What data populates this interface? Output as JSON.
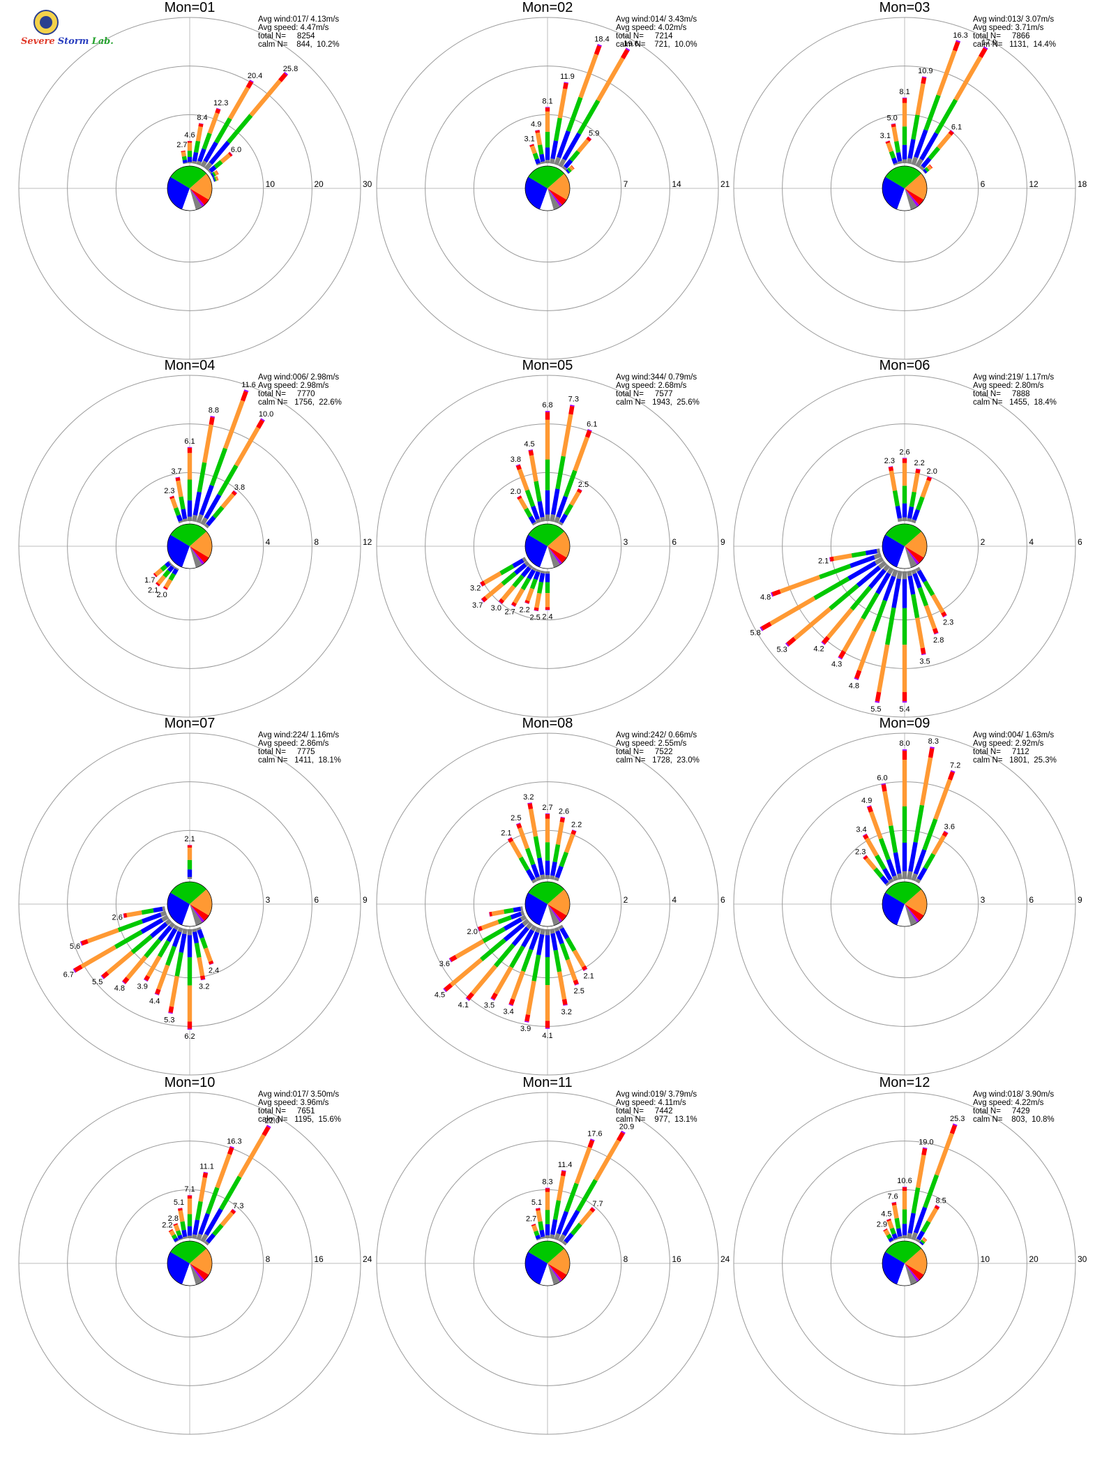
{
  "logo": {
    "text_1": "Severe",
    "text_2": "Storm",
    "text_3": "Lab."
  },
  "colors": {
    "calm_pie": [
      "#0000ff",
      "#00c800",
      "#ff9933",
      "#ff0000",
      "#a000ff",
      "#808080",
      "#ffffff"
    ],
    "speed_bins": [
      "#808080",
      "#0000ff",
      "#00c800",
      "#ff9933",
      "#ff0000",
      "#a000ff"
    ]
  },
  "chart_data": [
    {
      "type": "wind-rose",
      "title": "Mon=01",
      "rings": [
        "10",
        "20",
        "30"
      ],
      "rmax": 30,
      "info": [
        "Avg wind:017/ 4.13m/s",
        "Avg speed: 4.47m/s",
        "total N=     8254",
        "calm N=    844,  10.2%"
      ],
      "directions_deg": [
        350,
        0,
        10,
        20,
        30,
        40,
        50,
        60,
        70
      ],
      "pct": [
        2.7,
        4.6,
        8.4,
        12.3,
        20.4,
        25.8,
        6.0,
        1.5,
        1.0
      ],
      "labels": [
        "2.7",
        "4.6",
        "8.4",
        "12.3",
        "20.4",
        "25.8",
        "6.0",
        "",
        ""
      ]
    },
    {
      "type": "wind-rose",
      "title": "Mon=02",
      "rings": [
        "7",
        "14",
        "21"
      ],
      "rmax": 21,
      "info": [
        "Avg wind:014/ 3.43m/s",
        "Avg speed: 4.02m/s",
        "total N=     7214",
        "calm N=    721,  10.0%"
      ],
      "directions_deg": [
        340,
        350,
        0,
        10,
        20,
        30,
        40,
        50
      ],
      "pct": [
        3.1,
        4.9,
        8.1,
        11.9,
        18.4,
        19.6,
        5.9,
        1.2
      ],
      "labels": [
        "3.1",
        "4.9",
        "8.1",
        "11.9",
        "18.4",
        "19.6",
        "5.9",
        ""
      ]
    },
    {
      "type": "wind-rose",
      "title": "Mon=03",
      "rings": [
        "6",
        "12",
        "18"
      ],
      "rmax": 18,
      "info": [
        "Avg wind:013/ 3.07m/s",
        "Avg speed: 3.71m/s",
        "total N=     7866",
        "calm N=   1131,  14.4%"
      ],
      "directions_deg": [
        340,
        350,
        0,
        10,
        20,
        30,
        40,
        50
      ],
      "pct": [
        3.1,
        5.0,
        8.1,
        10.9,
        16.3,
        17.0,
        6.1,
        1.2
      ],
      "labels": [
        "3.1",
        "5.0",
        "8.1",
        "10.9",
        "16.3",
        "17.0",
        "6.1",
        ""
      ]
    },
    {
      "type": "wind-rose",
      "title": "Mon=04",
      "rings": [
        "4",
        "8",
        "12"
      ],
      "rmax": 12,
      "info": [
        "Avg wind:006/ 2.98m/s",
        "Avg speed: 2.98m/s",
        "total N=     7770",
        "calm N=   1756,  22.6%"
      ],
      "directions_deg": [
        340,
        350,
        0,
        10,
        20,
        30,
        40,
        210,
        220,
        230
      ],
      "pct": [
        2.3,
        3.7,
        6.1,
        8.8,
        11.6,
        10.0,
        3.8,
        2.0,
        2.1,
        1.7
      ],
      "labels": [
        "2.3",
        "3.7",
        "6.1",
        "8.8",
        "11.6",
        "10.0",
        "3.8",
        "2.0",
        "2.1",
        "1.7"
      ]
    },
    {
      "type": "wind-rose",
      "title": "Mon=05",
      "rings": [
        "3",
        "6",
        "9"
      ],
      "rmax": 9,
      "info": [
        "Avg wind:344/ 0.79m/s",
        "Avg speed: 2.68m/s",
        "total N=     7577",
        "calm N=   1943,  25.6%"
      ],
      "directions_deg": [
        330,
        340,
        350,
        0,
        10,
        20,
        30,
        180,
        190,
        200,
        210,
        220,
        230,
        240
      ],
      "pct": [
        2.0,
        3.8,
        4.5,
        6.8,
        7.3,
        6.1,
        2.5,
        2.4,
        2.5,
        2.2,
        2.7,
        3.0,
        3.7,
        3.2
      ],
      "labels": [
        "2.0",
        "3.8",
        "4.5",
        "6.8",
        "7.3",
        "6.1",
        "2.5",
        "2.4",
        "2.5",
        "2.2",
        "2.7",
        "3.0",
        "3.7",
        "3.2"
      ]
    },
    {
      "type": "wind-rose",
      "title": "Mon=06",
      "rings": [
        "2",
        "4",
        "6"
      ],
      "rmax": 6,
      "info": [
        "Avg wind:219/ 1.17m/s",
        "Avg speed: 2.80m/s",
        "total N=     7888",
        "calm N=   1455,  18.4%"
      ],
      "directions_deg": [
        350,
        0,
        10,
        20,
        150,
        160,
        170,
        180,
        190,
        200,
        210,
        220,
        230,
        240,
        250,
        260
      ],
      "pct": [
        2.3,
        2.6,
        2.2,
        2.0,
        2.3,
        2.8,
        3.5,
        5.4,
        5.5,
        4.8,
        4.3,
        4.2,
        5.3,
        5.8,
        4.8,
        2.1
      ],
      "labels": [
        "2.3",
        "2.6",
        "2.2",
        "2.0",
        "2.3",
        "2.8",
        "3.5",
        "5.4",
        "5.5",
        "4.8",
        "4.3",
        "4.2",
        "5.3",
        "5.8",
        "4.8",
        "2.1"
      ]
    },
    {
      "type": "wind-rose",
      "title": "Mon=07",
      "rings": [
        "3",
        "6",
        "9"
      ],
      "rmax": 9,
      "info": [
        "Avg wind:224/ 1.16m/s",
        "Avg speed: 2.86m/s",
        "total N=     7775",
        "calm N=   1411,  18.1%"
      ],
      "directions_deg": [
        0,
        160,
        170,
        180,
        190,
        200,
        210,
        220,
        230,
        240,
        250,
        260
      ],
      "pct": [
        2.1,
        2.4,
        3.2,
        6.2,
        5.3,
        4.4,
        3.9,
        4.8,
        5.5,
        6.7,
        5.6,
        2.6
      ],
      "labels": [
        "2.1",
        "2.4",
        "3.2",
        "6.2",
        "5.3",
        "4.4",
        "3.9",
        "4.8",
        "5.5",
        "6.7",
        "5.6",
        "2.6"
      ]
    },
    {
      "type": "wind-rose",
      "title": "Mon=08",
      "rings": [
        "2",
        "4",
        "6"
      ],
      "rmax": 6,
      "info": [
        "Avg wind:242/ 0.66m/s",
        "Avg speed: 2.55m/s",
        "total N=     7522",
        "calm N=   1728,  23.0%"
      ],
      "directions_deg": [
        330,
        340,
        350,
        0,
        10,
        20,
        150,
        160,
        170,
        180,
        190,
        200,
        210,
        220,
        230,
        240,
        250,
        260
      ],
      "pct": [
        2.1,
        2.5,
        3.2,
        2.7,
        2.6,
        2.2,
        2.1,
        2.5,
        3.2,
        4.1,
        3.9,
        3.4,
        3.5,
        4.1,
        4.5,
        3.6,
        2.0,
        1.4
      ],
      "labels": [
        "2.1",
        "2.5",
        "3.2",
        "2.7",
        "2.6",
        "2.2",
        "2.1",
        "2.5",
        "3.2",
        "4.1",
        "3.9",
        "3.4",
        "3.5",
        "4.1",
        "4.5",
        "3.6",
        "2.0",
        ""
      ]
    },
    {
      "type": "wind-rose",
      "title": "Mon=09",
      "rings": [
        "3",
        "6",
        "9"
      ],
      "rmax": 9,
      "info": [
        "Avg wind:004/ 1.63m/s",
        "Avg speed: 2.92m/s",
        "total N=     7112",
        "calm N=   1801,  25.3%"
      ],
      "directions_deg": [
        320,
        330,
        340,
        350,
        0,
        10,
        20,
        30
      ],
      "pct": [
        2.3,
        3.4,
        4.9,
        6.0,
        8.0,
        8.3,
        7.2,
        3.6
      ],
      "labels": [
        "2.3",
        "3.4",
        "4.9",
        "6.0",
        "8.0",
        "8.3",
        "7.2",
        "3.6"
      ]
    },
    {
      "type": "wind-rose",
      "title": "Mon=10",
      "rings": [
        "8",
        "16",
        "24"
      ],
      "rmax": 24,
      "info": [
        "Avg wind:017/ 3.50m/s",
        "Avg speed: 3.96m/s",
        "total N=     7651",
        "calm N=   1195,  15.6%"
      ],
      "directions_deg": [
        330,
        340,
        350,
        0,
        10,
        20,
        30,
        40
      ],
      "pct": [
        2.2,
        2.8,
        5.1,
        7.1,
        11.1,
        16.3,
        22.0,
        7.3
      ],
      "labels": [
        "2.2",
        "2.8",
        "5.1",
        "7.1",
        "11.1",
        "16.3",
        "22.0",
        "7.3"
      ]
    },
    {
      "type": "wind-rose",
      "title": "Mon=11",
      "rings": [
        "8",
        "16",
        "24"
      ],
      "rmax": 24,
      "info": [
        "Avg wind:019/ 3.79m/s",
        "Avg speed: 4.11m/s",
        "total N=     7442",
        "calm N=    977,  13.1%"
      ],
      "directions_deg": [
        340,
        350,
        0,
        10,
        20,
        30,
        40
      ],
      "pct": [
        2.7,
        5.1,
        8.3,
        11.4,
        17.6,
        20.9,
        7.7
      ],
      "labels": [
        "2.7",
        "5.1",
        "8.3",
        "11.4",
        "17.6",
        "20.9",
        "7.7"
      ]
    },
    {
      "type": "wind-rose",
      "title": "Mon=12",
      "rings": [
        "10",
        "20",
        "30"
      ],
      "rmax": 30,
      "info": [
        "Avg wind:018/ 3.90m/s",
        "Avg speed: 4.22m/s",
        "total N=     7429",
        "calm N=    803,  10.8%"
      ],
      "directions_deg": [
        330,
        340,
        350,
        0,
        10,
        20,
        30,
        40
      ],
      "pct": [
        2.9,
        4.5,
        7.6,
        10.6,
        19.0,
        25.3,
        8.5,
        1.5
      ],
      "labels": [
        "2.9",
        "4.5",
        "7.6",
        "10.6",
        "19.0",
        "25.3",
        "8.5",
        ""
      ]
    }
  ]
}
